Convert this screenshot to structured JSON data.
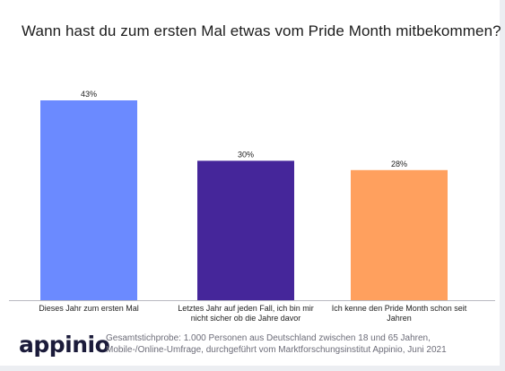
{
  "chart_data": {
    "type": "bar",
    "title": "Wann hast du zum ersten Mal etwas vom Pride Month mitbekommen?",
    "categories": [
      "Dieses Jahr zum ersten Mal",
      "Letztes Jahr auf jeden Fall, ich bin mir nicht sicher ob die Jahre davor",
      "Ich kenne den Pride Month schon seit Jahren"
    ],
    "category_lines": [
      [
        "Dieses Jahr zum ersten Mal"
      ],
      [
        "Letztes Jahr auf jeden Fall, ich bin mir",
        "nicht sicher ob die Jahre davor"
      ],
      [
        "Ich kenne den Pride Month schon seit",
        "Jahren"
      ]
    ],
    "values": [
      43,
      30,
      28
    ],
    "value_labels": [
      "43%",
      "30%",
      "28%"
    ],
    "colors": [
      "#6b8aff",
      "#45269a",
      "#ffa05e"
    ],
    "xlabel": "",
    "ylabel": "",
    "ylim": [
      0,
      43
    ],
    "grid": false,
    "legend": "none"
  },
  "footer": {
    "logo": "appinio",
    "note": "Gesamtstichprobe: 1.000 Personen aus Deutschland zwischen 18 und 65 Jahren, Mobile-/Online-Umfrage, durchgeführt vom Marktforschungsinstitut Appinio, Juni 2021"
  }
}
